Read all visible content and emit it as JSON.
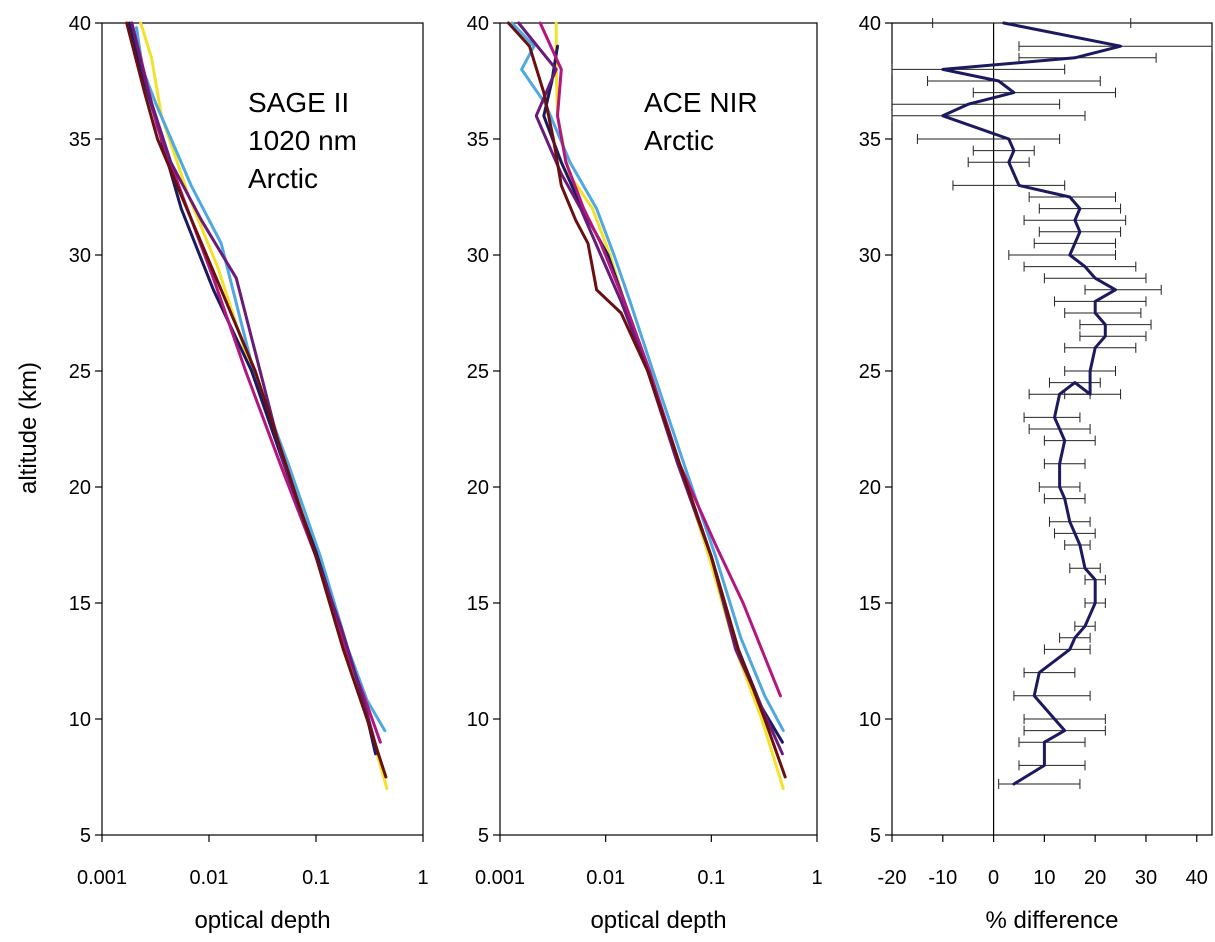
{
  "figure": {
    "ylabel": "altitude (km)"
  },
  "chart_data": [
    {
      "type": "line",
      "xscale": "log",
      "xlabel": "optical depth",
      "ylabel": "altitude (km)",
      "xlim": [
        0.001,
        1
      ],
      "ylim": [
        5,
        40
      ],
      "xticks": [
        0.001,
        0.01,
        0.1,
        1
      ],
      "xtick_labels": [
        "0.001",
        "0.01",
        "0.1",
        "1"
      ],
      "yticks": [
        5,
        10,
        15,
        20,
        25,
        30,
        35,
        40
      ],
      "ytick_labels": [
        "5",
        "10",
        "15",
        "20",
        "25",
        "30",
        "35",
        "40"
      ],
      "annotation": [
        "SAGE II",
        "1020 nm",
        "Arctic"
      ],
      "grid": false,
      "series": [
        {
          "color": "#F2E22A",
          "x": [
            0.46,
            0.3,
            0.18,
            0.1,
            0.052,
            0.025,
            0.012,
            0.0065,
            0.0036,
            0.0029,
            0.0023
          ],
          "y": [
            7,
            10,
            13,
            17,
            21,
            25,
            29.5,
            32.5,
            36,
            38.5,
            40
          ]
        },
        {
          "color": "#4FA8E0",
          "x": [
            0.44,
            0.3,
            0.2,
            0.11,
            0.055,
            0.026,
            0.013,
            0.0068,
            0.0032,
            0.0024,
            0.0021
          ],
          "y": [
            9.5,
            10.8,
            13,
            17,
            21,
            25,
            30.5,
            33,
            36.5,
            38,
            39.8
          ]
        },
        {
          "color": "#1C1A5E",
          "x": [
            0.36,
            0.27,
            0.18,
            0.1,
            0.05,
            0.025,
            0.011,
            0.0055,
            0.0031,
            0.0023,
            0.0018
          ],
          "y": [
            8.5,
            11,
            13.5,
            17.2,
            21,
            25,
            28.5,
            32,
            36,
            38,
            40
          ]
        },
        {
          "color": "#B3177E",
          "x": [
            0.4,
            0.28,
            0.19,
            0.1,
            0.048,
            0.022,
            0.011,
            0.0057,
            0.0033,
            0.0023,
            0.0019
          ],
          "y": [
            9,
            11,
            13,
            17,
            20.8,
            25,
            29,
            32.5,
            35.5,
            38.5,
            40
          ]
        },
        {
          "color": "#6A1B7A",
          "x": [
            0.38,
            0.27,
            0.17,
            0.1,
            0.05,
            0.03,
            0.018,
            0.0085,
            0.0044,
            0.0027,
            0.0019
          ],
          "y": [
            8.5,
            11,
            14,
            17,
            21,
            25,
            29,
            31.5,
            34,
            37,
            40
          ]
        },
        {
          "color": "#6B1010",
          "x": [
            0.45,
            0.3,
            0.18,
            0.1,
            0.052,
            0.027,
            0.013,
            0.0062,
            0.0033,
            0.0025,
            0.0017
          ],
          "y": [
            7.5,
            10,
            13,
            17,
            21,
            25,
            28.5,
            32,
            35,
            37,
            40
          ]
        }
      ]
    },
    {
      "type": "line",
      "xscale": "log",
      "xlabel": "optical depth",
      "ylabel": "",
      "xlim": [
        0.001,
        1
      ],
      "ylim": [
        5,
        40
      ],
      "xticks": [
        0.001,
        0.01,
        0.1,
        1
      ],
      "xtick_labels": [
        "0.001",
        "0.01",
        "0.1",
        "1"
      ],
      "yticks": [
        5,
        10,
        15,
        20,
        25,
        30,
        35,
        40
      ],
      "ytick_labels": [
        "5",
        "10",
        "15",
        "20",
        "25",
        "30",
        "35",
        "40"
      ],
      "annotation": [
        "ACE NIR",
        "Arctic"
      ],
      "grid": false,
      "series": [
        {
          "color": "#F2E22A",
          "x": [
            0.48,
            0.3,
            0.17,
            0.095,
            0.05,
            0.026,
            0.015,
            0.011,
            0.0075,
            0.0045,
            0.0035,
            0.0034,
            0.0034
          ],
          "y": [
            7,
            10,
            13,
            17,
            21,
            25,
            28,
            30,
            32,
            33.5,
            36,
            38,
            40
          ]
        },
        {
          "color": "#4FA8E0",
          "x": [
            0.48,
            0.32,
            0.19,
            0.11,
            0.055,
            0.028,
            0.017,
            0.012,
            0.0082,
            0.0046,
            0.0027,
            0.0016,
            0.0021,
            0.0013
          ],
          "y": [
            9.5,
            11,
            13.5,
            17,
            21,
            25,
            28,
            30,
            32,
            34,
            36.5,
            38,
            39,
            40
          ]
        },
        {
          "color": "#1C1A5E",
          "x": [
            0.47,
            0.3,
            0.18,
            0.1,
            0.05,
            0.026,
            0.015,
            0.0105,
            0.006,
            0.0038,
            0.0026,
            0.0031,
            0.0035
          ],
          "y": [
            9,
            10.5,
            13,
            17,
            21,
            25,
            28,
            30,
            32,
            34,
            36,
            37.5,
            39
          ]
        },
        {
          "color": "#B3177E",
          "x": [
            0.45,
            0.3,
            0.2,
            0.11,
            0.05,
            0.026,
            0.015,
            0.009,
            0.0062,
            0.0042,
            0.0035,
            0.0038,
            0.0024
          ],
          "y": [
            11,
            13,
            15,
            17.5,
            21,
            25,
            28,
            30.5,
            32,
            34,
            36,
            38,
            40
          ]
        },
        {
          "color": "#6A1B7A",
          "x": [
            0.47,
            0.3,
            0.17,
            0.1,
            0.048,
            0.025,
            0.014,
            0.009,
            0.0058,
            0.0038,
            0.0022,
            0.0034,
            0.0015
          ],
          "y": [
            8.5,
            10.5,
            13,
            17,
            21,
            25,
            28,
            30,
            32,
            33.5,
            36,
            38,
            40
          ]
        },
        {
          "color": "#6B1010",
          "x": [
            0.5,
            0.32,
            0.18,
            0.1,
            0.05,
            0.025,
            0.014,
            0.0082,
            0.0068,
            0.0052,
            0.0038,
            0.0032,
            0.0026,
            0.0019,
            0.0012
          ],
          "y": [
            7.5,
            10,
            13,
            17,
            21,
            25,
            27.5,
            28.5,
            30.5,
            31.5,
            33,
            35,
            37,
            39,
            40
          ]
        }
      ]
    },
    {
      "type": "line",
      "xscale": "linear",
      "xlabel": "% difference",
      "ylabel": "",
      "xlim": [
        -20,
        43
      ],
      "ylim": [
        5,
        40
      ],
      "xticks": [
        -20,
        -10,
        0,
        10,
        20,
        30,
        40
      ],
      "xtick_labels": [
        "-20",
        "-10",
        "0",
        "10",
        "20",
        "30",
        "40"
      ],
      "yticks": [
        5,
        10,
        15,
        20,
        25,
        30,
        35,
        40
      ],
      "ytick_labels": [
        "5",
        "10",
        "15",
        "20",
        "25",
        "30",
        "35",
        "40"
      ],
      "zero_line_x": 0,
      "grid": false,
      "series": [
        {
          "color": "#1C1A5E",
          "x": [
            4,
            10,
            10,
            14,
            12,
            8,
            9,
            15,
            16,
            18,
            20,
            20,
            18,
            17,
            16,
            15,
            14,
            13,
            13,
            14,
            13,
            12,
            13,
            16,
            19,
            19,
            20,
            22,
            22,
            20,
            20,
            24,
            20,
            18,
            15,
            16,
            17,
            16,
            17,
            15,
            5,
            3,
            4,
            3,
            -10,
            -5,
            4,
            1,
            -10,
            16,
            25,
            2
          ],
          "y": [
            7.2,
            8,
            9,
            9.5,
            10,
            11,
            12,
            13,
            13.5,
            14,
            15,
            16,
            16.5,
            17.5,
            18,
            18.5,
            19.5,
            20,
            21,
            22,
            22.5,
            23,
            24,
            24.5,
            24,
            25,
            26,
            26.5,
            27,
            27.5,
            28,
            28.5,
            29,
            29.5,
            30,
            30.5,
            31,
            31.5,
            32,
            32.5,
            33,
            34,
            34.5,
            35,
            36,
            36.5,
            37,
            37.5,
            38,
            38.5,
            39,
            40
          ],
          "error_minus": [
            3,
            5,
            5,
            8,
            6,
            4,
            3,
            5,
            3,
            2,
            2,
            2,
            3,
            3,
            4,
            4,
            4,
            4,
            3,
            4,
            6,
            6,
            6,
            5,
            5,
            5,
            6,
            5,
            5,
            6,
            8,
            6,
            10,
            12,
            12,
            8,
            8,
            10,
            8,
            8,
            13,
            8,
            8,
            18,
            30,
            18,
            8,
            14,
            18,
            11,
            20,
            14
          ],
          "error_plus": [
            13,
            8,
            8,
            8,
            10,
            11,
            7,
            4,
            3,
            2,
            2,
            2,
            3,
            2,
            4,
            4,
            4,
            4,
            5,
            6,
            6,
            5,
            6,
            5,
            6,
            5,
            8,
            8,
            9,
            9,
            10,
            9,
            10,
            10,
            9,
            8,
            8,
            10,
            8,
            9,
            9,
            4,
            4,
            10,
            28,
            18,
            20,
            20,
            24,
            16,
            40,
            25
          ]
        }
      ]
    }
  ]
}
